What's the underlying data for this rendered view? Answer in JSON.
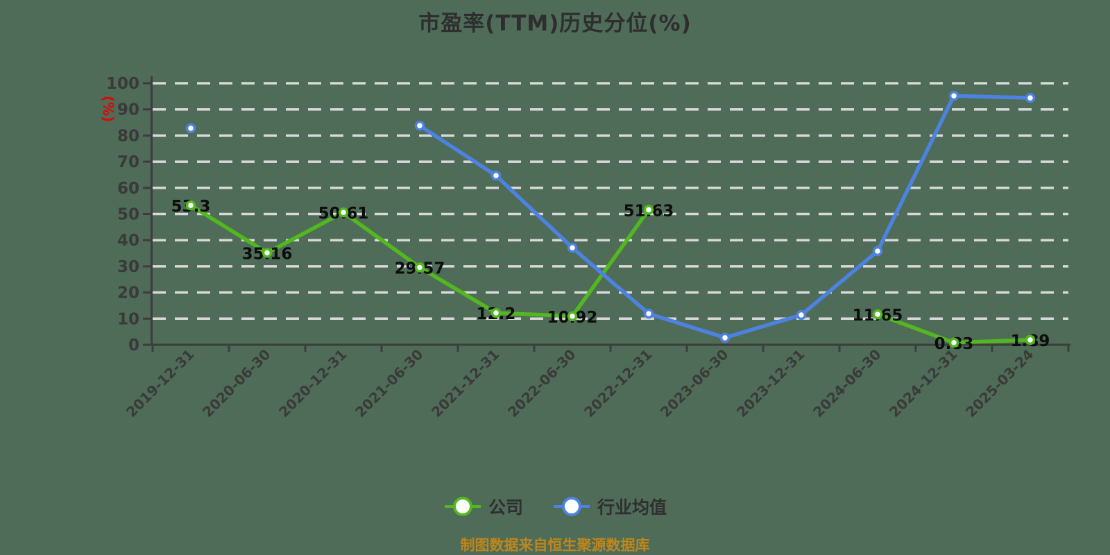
{
  "title": "市盈率(TTM)历史分位(%)",
  "y_axis_unit": "(%)",
  "caption": "制图数据来自恒生聚源数据库",
  "legend": {
    "items": [
      {
        "label": "公司",
        "color": "#53b71f"
      },
      {
        "label": "行业均值",
        "color": "#4e82e0"
      }
    ]
  },
  "colors": {
    "background": "#4e6c58",
    "grid": "#d9d9d9",
    "axis": "#3d3d3d",
    "tick_text": "#3a3a3a",
    "title_text": "#2e2e2e",
    "point_label_text": "#0d0d0d",
    "unit_text": "#e10600",
    "caption_text": "#bf861b",
    "company_line": "#53b71f",
    "industry_line": "#4e82e0",
    "marker_fill": "#ffffff"
  },
  "chart_data": {
    "type": "line",
    "title": "市盈率(TTM)历史分位(%)",
    "xlabel": "",
    "ylabel": "(%)",
    "ylim": [
      0,
      100
    ],
    "y_ticks": [
      0,
      10,
      20,
      30,
      40,
      50,
      60,
      70,
      80,
      90,
      100
    ],
    "grid": "horizontal-dashed-white",
    "legend_position": "bottom",
    "categories": [
      "2019-12-31",
      "2020-06-30",
      "2020-12-31",
      "2021-06-30",
      "2021-12-31",
      "2022-06-30",
      "2022-12-31",
      "2023-06-30",
      "2023-12-31",
      "2024-06-30",
      "2024-12-31",
      "2025-03-24"
    ],
    "series": [
      {
        "name": "公司",
        "color": "#53b71f",
        "values": [
          53.3,
          35.16,
          50.61,
          29.57,
          12.2,
          10.92,
          51.63,
          null,
          null,
          11.65,
          0.83,
          1.89
        ],
        "point_labels": [
          "53.3",
          "35.16",
          "50.61",
          "29.57",
          "12.2",
          "10.92",
          "51.63",
          null,
          null,
          "11.65",
          "0.83",
          "1.89"
        ]
      },
      {
        "name": "行业均值",
        "color": "#4e82e0",
        "values": [
          82.8,
          null,
          null,
          83.8,
          64.7,
          37.1,
          11.9,
          2.7,
          11.4,
          35.8,
          95.2,
          94.4
        ],
        "point_labels": null
      }
    ]
  }
}
